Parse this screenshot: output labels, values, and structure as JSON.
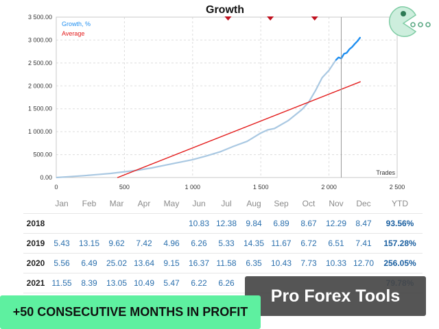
{
  "chart_data": {
    "type": "line",
    "title": "Growth",
    "xlabel": "Trades",
    "ylabel": "",
    "xlim": [
      0,
      2500
    ],
    "ylim": [
      0,
      3500
    ],
    "x_ticks": [
      "0",
      "500",
      "1 000",
      "1 500",
      "2 000",
      "2 500"
    ],
    "y_ticks": [
      "0.00",
      "500.00",
      "1 000.00",
      "1 500.00",
      "2 000.00",
      "2 500.00",
      "3 000.00",
      "3 500.00"
    ],
    "grid": true,
    "legend": "top-left",
    "current_marker_x": 2090,
    "event_markers_x": [
      1260,
      1570,
      1895
    ],
    "series": [
      {
        "name": "Growth, %",
        "color": "#a9c8e2",
        "x": [
          0,
          100,
          200,
          300,
          400,
          500,
          600,
          700,
          800,
          900,
          1000,
          1100,
          1200,
          1300,
          1400,
          1500,
          1550,
          1600,
          1700,
          1800,
          1850,
          1900,
          1950,
          2000,
          2050
        ],
        "y": [
          0,
          20,
          40,
          65,
          90,
          125,
          160,
          210,
          270,
          330,
          390,
          470,
          560,
          680,
          790,
          970,
          1040,
          1070,
          1240,
          1480,
          1640,
          1890,
          2180,
          2340,
          2560
        ]
      },
      {
        "name": "Growth, %",
        "color": "#1e8ef0",
        "x": [
          2050,
          2070,
          2090,
          2110,
          2130,
          2150,
          2170,
          2190,
          2210,
          2230
        ],
        "y": [
          2560,
          2620,
          2600,
          2700,
          2720,
          2800,
          2850,
          2920,
          2980,
          3060
        ]
      },
      {
        "name": "Average",
        "color": "#e31a1a",
        "x": [
          450,
          2230
        ],
        "y": [
          0,
          2090
        ]
      }
    ]
  },
  "table": {
    "headers": [
      "",
      "Jan",
      "Feb",
      "Mar",
      "Apr",
      "May",
      "Jun",
      "Jul",
      "Aug",
      "Sep",
      "Oct",
      "Nov",
      "Dec",
      "YTD"
    ],
    "rows": [
      [
        "2018",
        "",
        "",
        "",
        "",
        "",
        "10.83",
        "12.38",
        "9.84",
        "6.89",
        "8.67",
        "12.29",
        "8.47",
        "93.56%"
      ],
      [
        "2019",
        "5.43",
        "13.15",
        "9.62",
        "7.42",
        "4.96",
        "6.26",
        "5.33",
        "14.35",
        "11.67",
        "6.72",
        "6.51",
        "7.41",
        "157.28%"
      ],
      [
        "2020",
        "5.56",
        "6.49",
        "25.02",
        "13.64",
        "9.15",
        "16.37",
        "11.58",
        "6.35",
        "10.43",
        "7.73",
        "10.33",
        "12.70",
        "256.05%"
      ],
      [
        "2021",
        "11.55",
        "8.39",
        "13.05",
        "10.49",
        "5.47",
        "6.22",
        "6.26",
        "",
        "",
        "",
        "",
        "",
        "79.78%"
      ]
    ]
  },
  "brand_banner": "Pro Forex Tools",
  "promo_banner": "+50 CONSECUTIVE MONTHS IN PROFIT",
  "logo_icon": "pacman-logo-icon",
  "colors": {
    "growth_history": "#a9c8e2",
    "growth_recent": "#1e8ef0",
    "average": "#e31a1a",
    "promo": "#5ef0a0"
  }
}
